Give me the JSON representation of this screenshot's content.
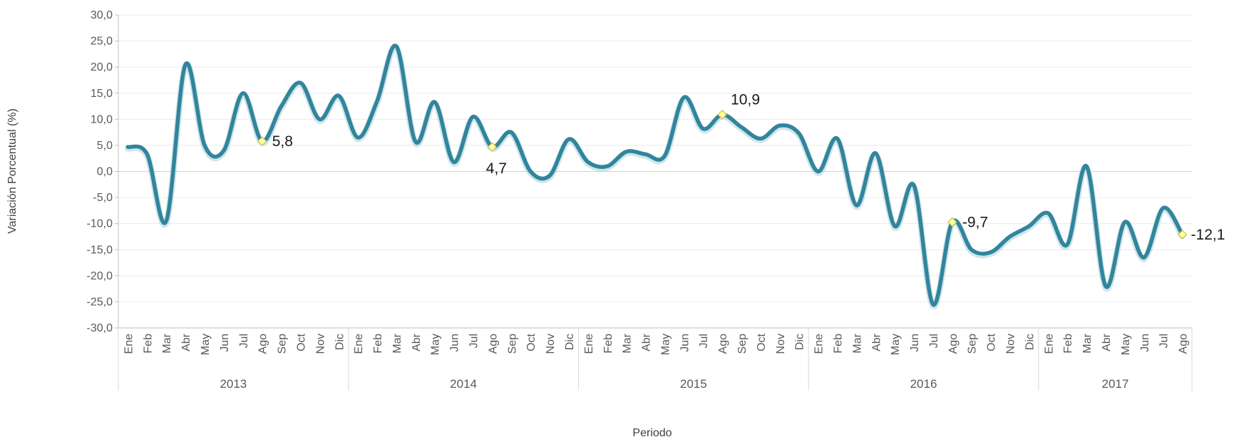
{
  "chart_data": {
    "type": "line",
    "title": "",
    "xlabel": "Periodo",
    "ylabel": "Variación Porcentual (%)",
    "ylim": [
      -30,
      30
    ],
    "ytick_step": 5,
    "ytick_labels": [
      "-30,0",
      "-25,0",
      "-20,0",
      "-15,0",
      "-10,0",
      "-5,0",
      "0,0",
      "5,0",
      "10,0",
      "15,0",
      "20,0",
      "25,0",
      "30,0"
    ],
    "grid": true,
    "legend": "none",
    "smooth": true,
    "line_color": "#31859c",
    "marker_color": "#ffff99",
    "years": [
      {
        "label": "2013",
        "months": [
          "Ene",
          "Feb",
          "Mar",
          "Abr",
          "May",
          "Jun",
          "Jul",
          "Ago",
          "Sep",
          "Oct",
          "Nov",
          "Dic"
        ]
      },
      {
        "label": "2014",
        "months": [
          "Ene",
          "Feb",
          "Mar",
          "Abr",
          "May",
          "Jun",
          "Jul",
          "Ago",
          "Sep",
          "Oct",
          "Nov",
          "Dic"
        ]
      },
      {
        "label": "2015",
        "months": [
          "Ene",
          "Feb",
          "Mar",
          "Abr",
          "May",
          "Jun",
          "Jul",
          "Ago",
          "Sep",
          "Oct",
          "Nov",
          "Dic"
        ]
      },
      {
        "label": "2016",
        "months": [
          "Ene",
          "Feb",
          "Mar",
          "Abr",
          "May",
          "Jun",
          "Jul",
          "Ago",
          "Sep",
          "Oct",
          "Nov",
          "Dic"
        ]
      },
      {
        "label": "2017",
        "months": [
          "Ene",
          "Feb",
          "Mar",
          "Abr",
          "May",
          "Jun",
          "Jul",
          "Ago"
        ]
      }
    ],
    "series": [
      {
        "values": [
          4.7,
          3.3,
          -9.5,
          20.5,
          5.0,
          4.0,
          15.0,
          5.8,
          12.5,
          17.0,
          10.0,
          14.5,
          6.5,
          13.5,
          24.0,
          5.7,
          13.3,
          1.8,
          10.5,
          4.7,
          7.5,
          0.0,
          -0.8,
          6.2,
          1.8,
          1.0,
          3.8,
          3.3,
          3.0,
          14.2,
          8.2,
          10.9,
          8.5,
          6.3,
          8.8,
          7.3,
          0.0,
          6.3,
          -6.5,
          3.5,
          -10.5,
          -2.7,
          -25.5,
          -9.7,
          -15.0,
          -15.5,
          -12.5,
          -10.5,
          -8.0,
          -14.0,
          1.0,
          -22.0,
          -9.7,
          -16.5,
          -7.0,
          -12.1
        ]
      }
    ],
    "highlighted_points": [
      {
        "index": 7,
        "label": "5,8"
      },
      {
        "index": 19,
        "label": "4,7"
      },
      {
        "index": 31,
        "label": "10,9"
      },
      {
        "index": 43,
        "label": "-9,7"
      },
      {
        "index": 55,
        "label": "-12,1"
      }
    ]
  }
}
